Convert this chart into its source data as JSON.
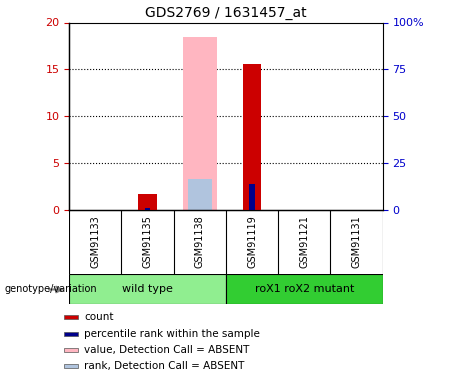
{
  "title": "GDS2769 / 1631457_at",
  "samples": [
    "GSM91133",
    "GSM91135",
    "GSM91138",
    "GSM91119",
    "GSM91121",
    "GSM91131"
  ],
  "groups": [
    {
      "label": "wild type",
      "color": "#90ee90",
      "start": 0,
      "end": 2
    },
    {
      "label": "roX1 roX2 mutant",
      "color": "#32cd32",
      "start": 3,
      "end": 5
    }
  ],
  "count_values": [
    0,
    1.7,
    0,
    15.6,
    0,
    0
  ],
  "rank_values": [
    0,
    0.2,
    0,
    2.8,
    0,
    0
  ],
  "absent_value_values": [
    0,
    0,
    18.5,
    0,
    0,
    0
  ],
  "absent_rank_values": [
    0,
    0,
    3.3,
    0,
    0,
    0
  ],
  "ylim": [
    0,
    20
  ],
  "yticks_left": [
    0,
    5,
    10,
    15,
    20
  ],
  "yticks_right": [
    0,
    25,
    50,
    75,
    100
  ],
  "count_color": "#cc0000",
  "rank_color": "#00008b",
  "absent_value_color": "#ffb6c1",
  "absent_rank_color": "#b0c4de",
  "bar_width": 0.35,
  "absent_bar_width": 0.65,
  "absent_rank_bar_width": 0.45,
  "rank_bar_width": 0.1,
  "genotype_label": "genotype/variation",
  "legend_items": [
    {
      "label": "count",
      "color": "#cc0000"
    },
    {
      "label": "percentile rank within the sample",
      "color": "#00008b"
    },
    {
      "label": "value, Detection Call = ABSENT",
      "color": "#ffb6c1"
    },
    {
      "label": "rank, Detection Call = ABSENT",
      "color": "#b0c4de"
    }
  ],
  "bg_color": "#ffffff",
  "plot_bg_color": "#ffffff",
  "grid_color": "#000000",
  "tick_label_color_left": "#cc0000",
  "tick_label_color_right": "#0000cc",
  "sample_bg_color": "#c8c8c8",
  "sample_divider_color": "#888888"
}
